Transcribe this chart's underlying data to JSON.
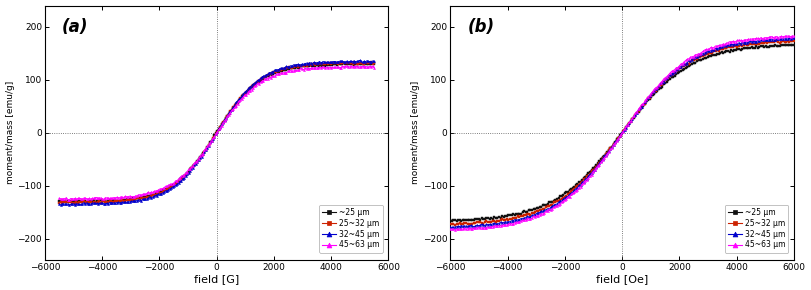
{
  "panel_a": {
    "label": "(a)",
    "xlabel": "field [G]",
    "ylabel": "moment/mass [emu/g]",
    "xlim": [
      -5500,
      5500
    ],
    "ylim": [
      -240,
      240
    ],
    "xticks": [
      -6000,
      -4000,
      -2000,
      0,
      2000,
      4000,
      6000
    ],
    "yticks": [
      -200,
      -100,
      0,
      100,
      200
    ],
    "slope": 0.00065,
    "series": [
      {
        "label": "~25 μm",
        "color": "#111111",
        "marker": "s",
        "sat": 130
      },
      {
        "label": "25~32 μm",
        "color": "#cc2200",
        "marker": "s",
        "sat": 132
      },
      {
        "label": "32~45 μm",
        "color": "#0000cc",
        "marker": "^",
        "sat": 135
      },
      {
        "label": "45~63 μm",
        "color": "#ff00ff",
        "marker": "^",
        "sat": 125
      }
    ]
  },
  "panel_b": {
    "label": "(b)",
    "xlabel": "field [Oe]",
    "ylabel": "moment/mass [emu/g]",
    "xlim": [
      -6000,
      6000
    ],
    "ylim": [
      -240,
      240
    ],
    "xticks": [
      -6000,
      -4000,
      -2000,
      0,
      2000,
      4000,
      6000
    ],
    "yticks": [
      -200,
      -100,
      0,
      100,
      200
    ],
    "slope": 0.00042,
    "series": [
      {
        "label": "~25 μm",
        "color": "#111111",
        "marker": "s",
        "sat": 168
      },
      {
        "label": "25~32 μm",
        "color": "#cc2200",
        "marker": "s",
        "sat": 175
      },
      {
        "label": "32~45 μm",
        "color": "#0000cc",
        "marker": "^",
        "sat": 180
      },
      {
        "label": "45~63 μm",
        "color": "#ff00ff",
        "marker": "^",
        "sat": 185
      }
    ]
  },
  "background_color": "#ffffff",
  "fig_width": 8.11,
  "fig_height": 2.9,
  "dpi": 100
}
